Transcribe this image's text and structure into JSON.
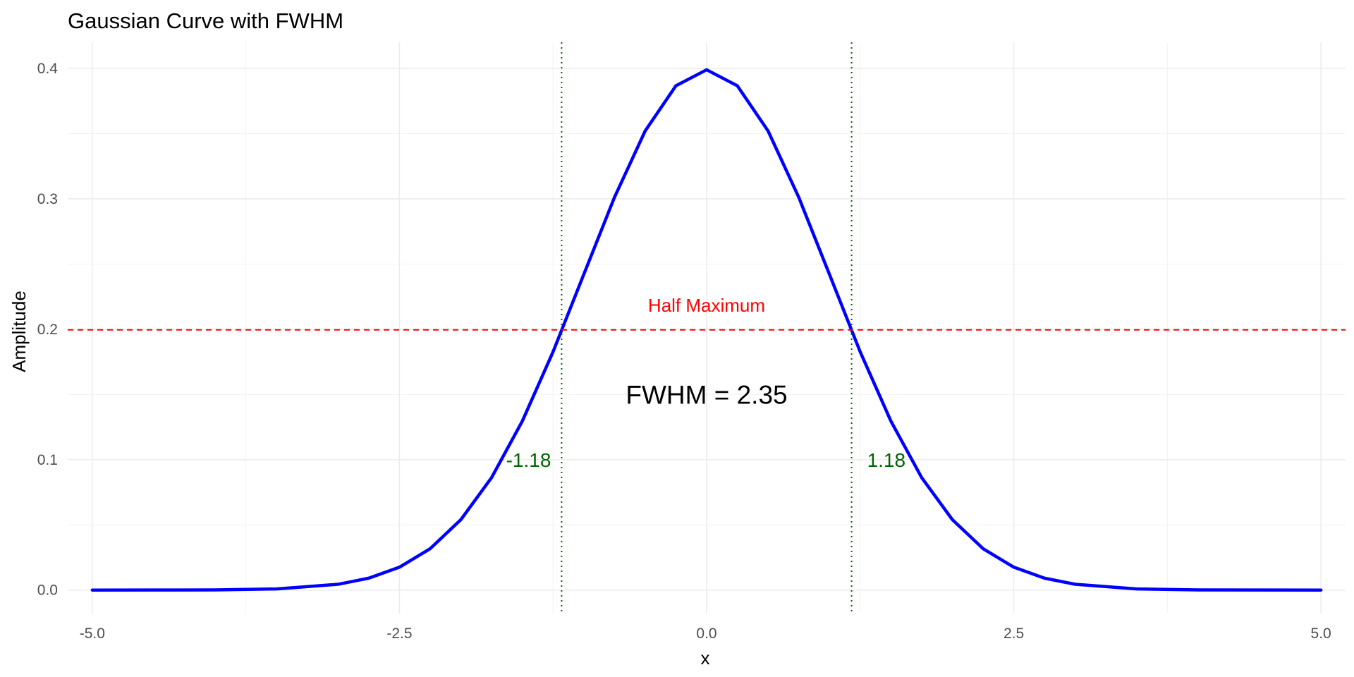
{
  "chart_data": {
    "type": "line",
    "title": "Gaussian Curve with FWHM",
    "xlabel": "x",
    "ylabel": "Amplitude",
    "xlim": [
      -5.2,
      5.2
    ],
    "ylim": [
      -0.018,
      0.42
    ],
    "x_ticks": [
      -5.0,
      -2.5,
      0.0,
      2.5,
      5.0
    ],
    "x_tick_labels": [
      "-5.0",
      "-2.5",
      "0.0",
      "2.5",
      "5.0"
    ],
    "y_ticks": [
      0.0,
      0.1,
      0.2,
      0.3,
      0.4
    ],
    "y_tick_labels": [
      "0.0",
      "0.1",
      "0.2",
      "0.3",
      "0.4"
    ],
    "grid": true,
    "series": [
      {
        "color": "#0000ff",
        "x": [
          -5.0,
          -4.5,
          -4.0,
          -3.5,
          -3.0,
          -2.75,
          -2.5,
          -2.25,
          -2.0,
          -1.75,
          -1.5,
          -1.25,
          -1.0,
          -0.75,
          -0.5,
          -0.25,
          0.0,
          0.25,
          0.5,
          0.75,
          1.0,
          1.25,
          1.5,
          1.75,
          2.0,
          2.25,
          2.5,
          2.75,
          3.0,
          3.5,
          4.0,
          4.5,
          5.0
        ],
        "y": [
          1.5e-06,
          1.6e-05,
          0.000134,
          0.000873,
          0.004432,
          0.009094,
          0.017528,
          0.03174,
          0.053991,
          0.086277,
          0.129518,
          0.182649,
          0.241971,
          0.301137,
          0.352065,
          0.386668,
          0.398942,
          0.386668,
          0.352065,
          0.301137,
          0.241971,
          0.182649,
          0.129518,
          0.086277,
          0.053991,
          0.03174,
          0.017528,
          0.009094,
          0.004432,
          0.000873,
          0.000134,
          1.6e-05,
          1.5e-06
        ]
      }
    ],
    "half_maximum": {
      "y": 0.1995,
      "label": "Half Maximum",
      "color": "#ff0000"
    },
    "fwhm_bounds": [
      {
        "x": -1.18,
        "label": "-1.18"
      },
      {
        "x": 1.18,
        "label": "1.18"
      }
    ],
    "fwhm_color": "#006400",
    "fwhm_label": "FWHM = 2.35"
  }
}
